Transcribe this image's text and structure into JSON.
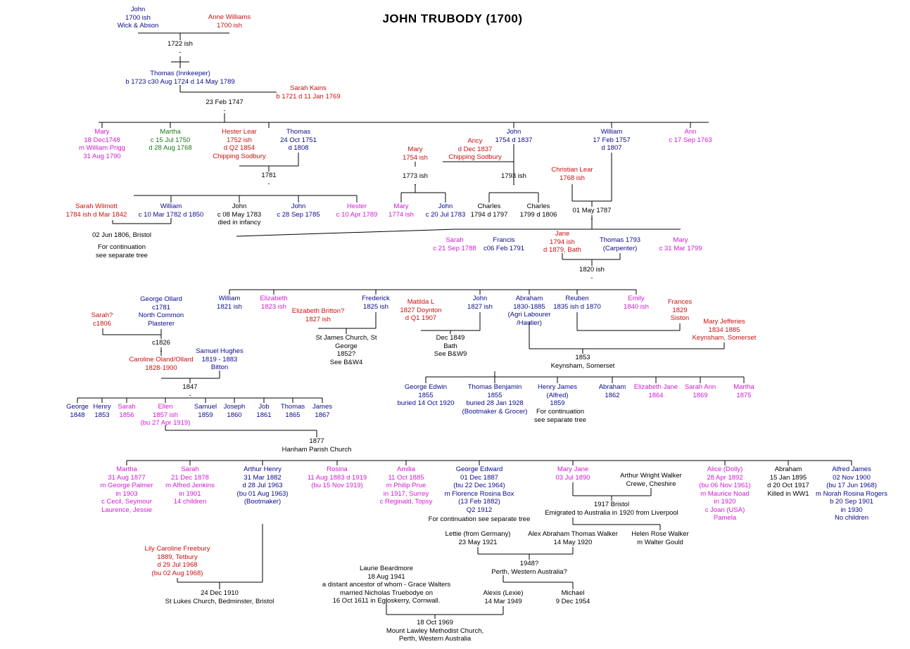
{
  "title": "JOHN TRUBODY (1700)",
  "colors": {
    "male": "#0a0a8c",
    "female": "#d21ad2",
    "spouse": "#cc1010",
    "other": "#1a7a1a",
    "event": "#000000",
    "line": "#000000"
  },
  "nodes": [
    {
      "id": "john1700",
      "c": "male",
      "lines": [
        "John",
        "1700 ish",
        "Wick & Abson"
      ]
    },
    {
      "id": "anne",
      "c": "spouse",
      "lines": [
        "Anne Williams",
        "1700 ish"
      ]
    },
    {
      "id": "m1722",
      "c": "event",
      "lines": [
        "1722 ish",
        "-"
      ]
    },
    {
      "id": "thomas_inn",
      "c": "male",
      "lines": [
        "Thomas (Innkeeper)",
        "b 1723 c30 Aug 1724 d 14 May 1789"
      ]
    },
    {
      "id": "sarah_kains",
      "c": "spouse",
      "lines": [
        "Sarah Kains",
        "b 1721 d 11 Jan 1769"
      ]
    },
    {
      "id": "m1747",
      "c": "event",
      "lines": [
        "23 Feb 1747",
        "-"
      ]
    },
    {
      "id": "mary1748",
      "c": "female",
      "lines": [
        "Mary",
        "18 Dec1748",
        "m William Prigg",
        "31 Aug 1790"
      ]
    },
    {
      "id": "martha1750",
      "c": "other",
      "lines": [
        "Martha",
        "c 15 Jul 1750",
        "d 28 Aug 1768"
      ]
    },
    {
      "id": "hester_lear",
      "c": "spouse",
      "lines": [
        "Hester Lear",
        "1752 ish",
        "d Q2 1854",
        "Chipping Sodbury"
      ]
    },
    {
      "id": "thomas1751",
      "c": "male",
      "lines": [
        "Thomas",
        "24 Oct 1751",
        "d 1808"
      ]
    },
    {
      "id": "m1781",
      "c": "event",
      "lines": [
        "1781",
        "-"
      ]
    },
    {
      "id": "sarah_wilmott",
      "c": "spouse",
      "lines": [
        "Sarah Wilmott",
        "1784 ish d Mar 1842"
      ]
    },
    {
      "id": "william1782",
      "c": "male",
      "lines": [
        "William",
        "c 10 Mar 1782 d 1850"
      ]
    },
    {
      "id": "john1783",
      "c": "event",
      "lines": [
        "John",
        "c 08 May 1783",
        "died in infancy"
      ]
    },
    {
      "id": "john1785",
      "c": "male",
      "lines": [
        "John",
        "c 28 Sep 1785"
      ]
    },
    {
      "id": "hester1789",
      "c": "female",
      "lines": [
        "Hester",
        "c 10 Apr 1789"
      ]
    },
    {
      "id": "m1806",
      "c": "event",
      "lines": [
        "02 Jun 1806, Bristol"
      ]
    },
    {
      "id": "cont1",
      "c": "event",
      "lines": [
        "For continuation",
        "see separate tree"
      ]
    },
    {
      "id": "john1754",
      "c": "male",
      "lines": [
        "John",
        "1754 d 1837"
      ]
    },
    {
      "id": "ancy",
      "c": "spouse",
      "lines": [
        "Ancy",
        "d Dec 1837",
        "Chipping Sodbury"
      ]
    },
    {
      "id": "mary1754",
      "c": "spouse",
      "lines": [
        "Mary",
        "1754 ish"
      ]
    },
    {
      "id": "m1773",
      "c": "event",
      "lines": [
        "1773 ish",
        "-"
      ]
    },
    {
      "id": "mary1774",
      "c": "female",
      "lines": [
        "Mary",
        "1774 ish"
      ]
    },
    {
      "id": "john1783b",
      "c": "male",
      "lines": [
        "John",
        "c 20 Jul 1783"
      ]
    },
    {
      "id": "m1793",
      "c": "event",
      "lines": [
        "1793 ish",
        "-"
      ]
    },
    {
      "id": "charles1794",
      "c": "event",
      "lines": [
        "Charles",
        "1794 d 1797"
      ]
    },
    {
      "id": "charles1799",
      "c": "event",
      "lines": [
        "Charles",
        "1799 d 1806"
      ]
    },
    {
      "id": "william1757",
      "c": "male",
      "lines": [
        "William",
        "17 Feb 1757",
        "d 1807"
      ]
    },
    {
      "id": "ann1763",
      "c": "female",
      "lines": [
        "Ann",
        "c 17 Sep 1763"
      ]
    },
    {
      "id": "christian",
      "c": "spouse",
      "lines": [
        "Christian Lear",
        "1768 ish"
      ]
    },
    {
      "id": "m1787",
      "c": "event",
      "lines": [
        "01 May 1787",
        "-"
      ]
    },
    {
      "id": "sarah1788",
      "c": "female",
      "lines": [
        "Sarah",
        "c 21 Sep 1788"
      ]
    },
    {
      "id": "francis1791",
      "c": "male",
      "lines": [
        "Francis",
        "c06 Feb 1791"
      ]
    },
    {
      "id": "jane1794",
      "c": "spouse",
      "lines": [
        "Jane",
        "1794 ish",
        "d 1879, Bath"
      ]
    },
    {
      "id": "thomas1793",
      "c": "male",
      "lines": [
        "Thomas 1793",
        "(Carpenter)"
      ]
    },
    {
      "id": "mary1799",
      "c": "female",
      "lines": [
        "Mary",
        "c 31 Mar 1799"
      ]
    },
    {
      "id": "m1820",
      "c": "event",
      "lines": [
        "1820 ish",
        "-"
      ]
    },
    {
      "id": "william1821",
      "c": "male",
      "lines": [
        "William",
        "1821 ish"
      ]
    },
    {
      "id": "elizabeth1823",
      "c": "female",
      "lines": [
        "Elizabeth",
        "1823 ish"
      ]
    },
    {
      "id": "eliz_britton",
      "c": "spouse",
      "lines": [
        "Elizabeth Britton?",
        "1827 ish"
      ]
    },
    {
      "id": "frederick1825",
      "c": "male",
      "lines": [
        "Frederick",
        "1825 ish"
      ]
    },
    {
      "id": "m_stjames",
      "c": "event",
      "lines": [
        "St James Church, St",
        "George",
        "1852?",
        "See B&W4"
      ]
    },
    {
      "id": "matilda",
      "c": "spouse",
      "lines": [
        "Matilda L",
        "1827 Doynton",
        "d Q1 1907"
      ]
    },
    {
      "id": "john1827",
      "c": "male",
      "lines": [
        "John",
        "1827 ish"
      ]
    },
    {
      "id": "m1849",
      "c": "event",
      "lines": [
        "Dec 1849",
        "Bath",
        "See B&W9"
      ]
    },
    {
      "id": "abraham1830",
      "c": "male",
      "lines": [
        "Abraham",
        "1830-1885",
        "(Agri Labourer",
        "/Haulier)"
      ]
    },
    {
      "id": "reuben1835",
      "c": "male",
      "lines": [
        "Reuben",
        "1835 ish d 1870"
      ]
    },
    {
      "id": "emily1840",
      "c": "female",
      "lines": [
        "Emily",
        "1840 ish"
      ]
    },
    {
      "id": "frances1829",
      "c": "spouse",
      "lines": [
        "Frances",
        "1829",
        "Siston"
      ]
    },
    {
      "id": "mary_jefferies",
      "c": "spouse",
      "lines": [
        "Mary Jefferies",
        "1834 1885",
        "Keynsham, Somerset"
      ]
    },
    {
      "id": "m1853",
      "c": "event",
      "lines": [
        "1853",
        "Keynsham, Somerset"
      ]
    },
    {
      "id": "george_ollard",
      "c": "male",
      "lines": [
        "George Ollard",
        "c1781",
        "North Common",
        "Plasterer"
      ]
    },
    {
      "id": "sarah1806",
      "c": "spouse",
      "lines": [
        "Sarah?",
        "c1806"
      ]
    },
    {
      "id": "m1826",
      "c": "event",
      "lines": [
        "c1826",
        "-"
      ]
    },
    {
      "id": "caroline_oland",
      "c": "spouse",
      "lines": [
        "Caroline Oland/Ollard",
        "1828-1900"
      ]
    },
    {
      "id": "samuel_hughes",
      "c": "male",
      "lines": [
        "Samuel Hughes",
        "1819 - 1883",
        "Bitton"
      ]
    },
    {
      "id": "m1847",
      "c": "event",
      "lines": [
        "1847",
        "-"
      ]
    },
    {
      "id": "george1848",
      "c": "male",
      "lines": [
        "George",
        "1848"
      ]
    },
    {
      "id": "henry1853",
      "c": "male",
      "lines": [
        "Henry",
        "1853"
      ]
    },
    {
      "id": "sarah1856",
      "c": "female",
      "lines": [
        "Sarah",
        "1856"
      ]
    },
    {
      "id": "ellen1857",
      "c": "female",
      "lines": [
        "Ellen",
        "1857 ish",
        "(bu 27 Apr 1919)"
      ]
    },
    {
      "id": "samuel1859",
      "c": "male",
      "lines": [
        "Samuel",
        "1859"
      ]
    },
    {
      "id": "joseph1860",
      "c": "male",
      "lines": [
        "Joseph",
        "1860"
      ]
    },
    {
      "id": "job1861",
      "c": "male",
      "lines": [
        "Job",
        "1861"
      ]
    },
    {
      "id": "thomas1865",
      "c": "male",
      "lines": [
        "Thomas",
        "1865"
      ]
    },
    {
      "id": "james1867",
      "c": "male",
      "lines": [
        "James",
        "1867"
      ]
    },
    {
      "id": "george_edwin",
      "c": "male",
      "lines": [
        "George Edwin",
        "1855",
        "buried 14 Oct 1920"
      ]
    },
    {
      "id": "thomas_benjamin",
      "c": "male",
      "lines": [
        "Thomas Benjamin",
        "1855",
        "buried 28 Jan 1928",
        "(Bootmaker & Grocer)"
      ]
    },
    {
      "id": "henry_james",
      "c": "male",
      "lines": [
        "Henry James",
        "(Alfred)",
        "1859"
      ]
    },
    {
      "id": "cont2",
      "c": "event",
      "lines": [
        "For continuation",
        "see separate tree"
      ]
    },
    {
      "id": "abraham1862",
      "c": "male",
      "lines": [
        "Abraham",
        "1862"
      ]
    },
    {
      "id": "elizabeth_jane",
      "c": "female",
      "lines": [
        "Elizabeth Jane",
        "1864"
      ]
    },
    {
      "id": "sarah_ann",
      "c": "female",
      "lines": [
        "Sarah Ann",
        "1869"
      ]
    },
    {
      "id": "martha1875",
      "c": "female",
      "lines": [
        "Martha",
        "1875"
      ]
    },
    {
      "id": "m1877",
      "c": "event",
      "lines": [
        "1877",
        "Hanham Parish Church"
      ]
    },
    {
      "id": "martha1877",
      "c": "female",
      "lines": [
        "Martha",
        "31 Aug 1877",
        "m George Palmer",
        "in 1903",
        "c Cecil, Seymour",
        "Laurence, Jessie"
      ]
    },
    {
      "id": "sarah1878",
      "c": "female",
      "lines": [
        "Sarah",
        "21 Dec 1878",
        "m Alfred Jenkins",
        "in 1901",
        "14 children"
      ]
    },
    {
      "id": "arthur_henry",
      "c": "male",
      "lines": [
        "Arthur Henry",
        "31 Mar 1882",
        "d 28 Jul 1963",
        "(bu 01 Aug 1963)",
        "(Bootmaker)"
      ]
    },
    {
      "id": "rosina",
      "c": "female",
      "lines": [
        "Rosina",
        "11 Aug 1883 d 1919",
        "(bu 15 Nov 1919)"
      ]
    },
    {
      "id": "amilia",
      "c": "female",
      "lines": [
        "Amilia",
        "11 Oct 1885",
        "m Philip Prue",
        "in 1917, Surrey",
        "c Reginald, Topsy"
      ]
    },
    {
      "id": "george_edward",
      "c": "male",
      "lines": [
        "George Edward",
        "01 Dec 1887",
        "(bu 22 Dec 1964)",
        "m Florence Rosina Box",
        "(13 Feb 1882)",
        "Q2 1912"
      ]
    },
    {
      "id": "cont3",
      "c": "event",
      "lines": [
        "For continuation see separate tree"
      ]
    },
    {
      "id": "mary_jane",
      "c": "female",
      "lines": [
        "Mary Jane",
        "03 Jul 1890"
      ]
    },
    {
      "id": "arthur_wright",
      "c": "event",
      "lines": [
        "Arthur Wright Walker",
        "Crewe, Cheshire"
      ]
    },
    {
      "id": "m1917",
      "c": "event",
      "lines": [
        "1917 Bristol",
        "Emigrated to Australia in 1920 from Liverpool"
      ]
    },
    {
      "id": "alice_dolly",
      "c": "female",
      "lines": [
        "Alice (Dolly)",
        "28 Apr 1892",
        "(bu 06 Nov 1961)",
        "m Maurice Noad",
        "in 1920",
        "c Joan (USA)",
        "Pamela"
      ]
    },
    {
      "id": "abraham1895",
      "c": "event",
      "lines": [
        "Abraham",
        "15 Jan 1895",
        "d 20 Oct 1917",
        "Killed in WW1"
      ]
    },
    {
      "id": "alfred_james",
      "c": "male",
      "lines": [
        "Alfred James",
        "02 Nov 1900",
        "(bu 17 Jun 1968)",
        "m Norah Rosina Rogers",
        "b 20 Sep 1901",
        "in 1930",
        "No children"
      ]
    },
    {
      "id": "lily",
      "c": "spouse",
      "lines": [
        "Lily Caroline Freebury",
        "1889, Tetbury",
        "d 29 Jul 1968",
        "(bu 02 Aug 1968)"
      ]
    },
    {
      "id": "m1910",
      "c": "event",
      "lines": [
        "24 Dec 1910",
        "St Lukes Church, Bedminster, Bristol"
      ]
    },
    {
      "id": "lettie",
      "c": "event",
      "lines": [
        "Lettie (from Germany)",
        "23 May 1921"
      ]
    },
    {
      "id": "alex_walker",
      "c": "event",
      "lines": [
        "Alex Abraham Thomas Walker",
        "14 May 1920"
      ]
    },
    {
      "id": "helen_walker",
      "c": "event",
      "lines": [
        "Helen Rose Walker",
        "m Walter Gould"
      ]
    },
    {
      "id": "m1948",
      "c": "event",
      "lines": [
        "1948?",
        "Perth, Western Australia?"
      ]
    },
    {
      "id": "laurie",
      "c": "event",
      "lines": [
        "Laurie Beardmore",
        "18 Aug 1941",
        "a distant ancestor of whom - Grace Walters",
        "married Nicholas Truebodye on",
        "16 Oct 1611 in Egloskerry, Cornwall."
      ]
    },
    {
      "id": "alexis",
      "c": "event",
      "lines": [
        "Alexis (Lexie)",
        "14 Mar 1949"
      ]
    },
    {
      "id": "michael",
      "c": "event",
      "lines": [
        "Michael",
        "9 Dec 1954"
      ]
    },
    {
      "id": "m1969",
      "c": "event",
      "lines": [
        "18 Oct 1969",
        "Mount Lawley Methodist Church,",
        "Perth, Western Australia"
      ]
    }
  ]
}
